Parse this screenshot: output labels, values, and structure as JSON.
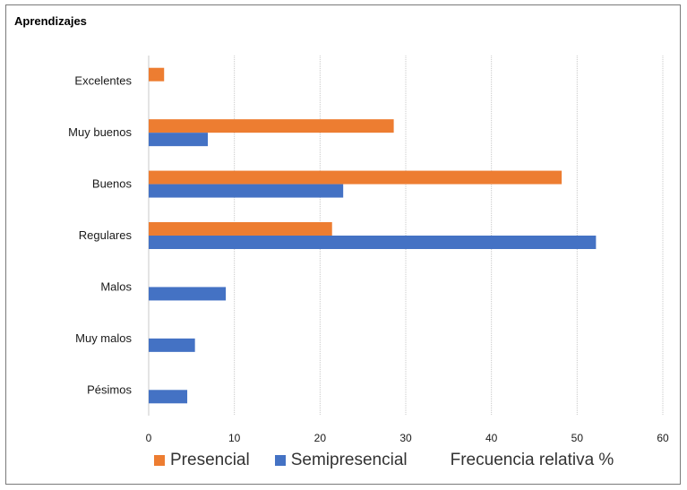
{
  "chart_data": {
    "type": "bar",
    "orientation": "horizontal",
    "title": "Aprendizajes",
    "xlabel": "Frecuencia relativa %",
    "ylabel": "",
    "xlim": [
      0,
      60
    ],
    "xticks": [
      "0",
      "10",
      "20",
      "30",
      "40",
      "50",
      "60"
    ],
    "categories": [
      "Excelentes",
      "Muy buenos",
      "Buenos",
      "Regulares",
      "Malos",
      "Muy malos",
      "Pésimos"
    ],
    "series": [
      {
        "name": "Presencial",
        "color": "#ED7D31",
        "values": [
          1.8,
          28.6,
          48.2,
          21.4,
          0,
          0,
          0
        ]
      },
      {
        "name": "Semipresencial",
        "color": "#4472C4",
        "values": [
          0,
          6.9,
          22.7,
          52.2,
          9.0,
          5.4,
          4.5
        ]
      }
    ],
    "grid": true,
    "legend": "bottom"
  }
}
